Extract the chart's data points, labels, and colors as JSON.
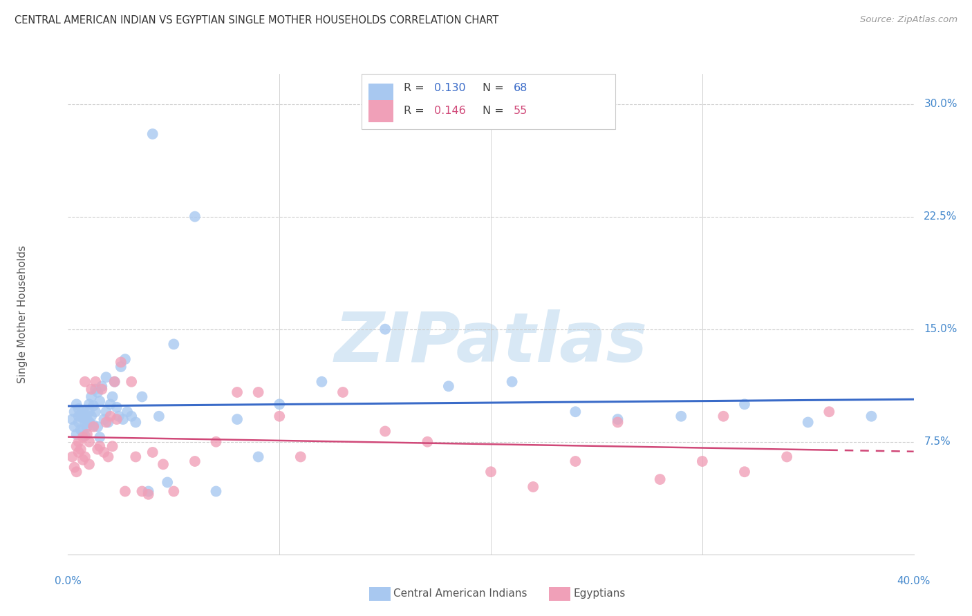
{
  "title": "CENTRAL AMERICAN INDIAN VS EGYPTIAN SINGLE MOTHER HOUSEHOLDS CORRELATION CHART",
  "source": "Source: ZipAtlas.com",
  "ylabel": "Single Mother Households",
  "ytick_labels": [
    "7.5%",
    "15.0%",
    "22.5%",
    "30.0%"
  ],
  "ytick_values": [
    0.075,
    0.15,
    0.225,
    0.3
  ],
  "xlim": [
    0.0,
    0.4
  ],
  "ylim": [
    0.0,
    0.32
  ],
  "blue_color": "#A8C8F0",
  "blue_line_color": "#3A6BC8",
  "pink_color": "#F0A0B8",
  "pink_line_color": "#D04878",
  "title_color": "#333333",
  "axis_label_color": "#4488CC",
  "source_color": "#999999",
  "watermark_color": "#D8E8F5",
  "grid_color": "#CCCCCC",
  "blue_scatter_x": [
    0.002,
    0.003,
    0.003,
    0.004,
    0.004,
    0.005,
    0.005,
    0.005,
    0.006,
    0.006,
    0.007,
    0.007,
    0.007,
    0.008,
    0.008,
    0.008,
    0.009,
    0.009,
    0.01,
    0.01,
    0.01,
    0.011,
    0.011,
    0.012,
    0.012,
    0.013,
    0.013,
    0.014,
    0.014,
    0.015,
    0.015,
    0.016,
    0.017,
    0.018,
    0.018,
    0.019,
    0.02,
    0.021,
    0.022,
    0.023,
    0.024,
    0.025,
    0.026,
    0.027,
    0.028,
    0.03,
    0.032,
    0.035,
    0.038,
    0.04,
    0.043,
    0.047,
    0.05,
    0.06,
    0.07,
    0.08,
    0.09,
    0.1,
    0.12,
    0.15,
    0.18,
    0.21,
    0.24,
    0.26,
    0.29,
    0.32,
    0.35,
    0.38
  ],
  "blue_scatter_y": [
    0.09,
    0.095,
    0.085,
    0.1,
    0.08,
    0.092,
    0.097,
    0.088,
    0.093,
    0.083,
    0.091,
    0.096,
    0.082,
    0.087,
    0.094,
    0.079,
    0.09,
    0.085,
    0.095,
    0.1,
    0.088,
    0.092,
    0.105,
    0.099,
    0.086,
    0.11,
    0.095,
    0.108,
    0.085,
    0.102,
    0.078,
    0.112,
    0.09,
    0.118,
    0.095,
    0.088,
    0.1,
    0.105,
    0.115,
    0.098,
    0.092,
    0.125,
    0.09,
    0.13,
    0.095,
    0.092,
    0.088,
    0.105,
    0.042,
    0.28,
    0.092,
    0.048,
    0.14,
    0.225,
    0.042,
    0.09,
    0.065,
    0.1,
    0.115,
    0.15,
    0.112,
    0.115,
    0.095,
    0.09,
    0.092,
    0.1,
    0.088,
    0.092
  ],
  "pink_scatter_x": [
    0.002,
    0.003,
    0.004,
    0.004,
    0.005,
    0.005,
    0.006,
    0.007,
    0.007,
    0.008,
    0.008,
    0.009,
    0.01,
    0.01,
    0.011,
    0.012,
    0.013,
    0.014,
    0.015,
    0.016,
    0.017,
    0.018,
    0.019,
    0.02,
    0.021,
    0.022,
    0.023,
    0.025,
    0.027,
    0.03,
    0.032,
    0.035,
    0.038,
    0.04,
    0.045,
    0.05,
    0.06,
    0.07,
    0.08,
    0.09,
    0.1,
    0.11,
    0.13,
    0.15,
    0.17,
    0.2,
    0.22,
    0.24,
    0.26,
    0.28,
    0.3,
    0.31,
    0.32,
    0.34,
    0.36
  ],
  "pink_scatter_y": [
    0.065,
    0.058,
    0.072,
    0.055,
    0.075,
    0.068,
    0.07,
    0.078,
    0.063,
    0.065,
    0.115,
    0.08,
    0.075,
    0.06,
    0.11,
    0.085,
    0.115,
    0.07,
    0.072,
    0.11,
    0.068,
    0.088,
    0.065,
    0.092,
    0.072,
    0.115,
    0.09,
    0.128,
    0.042,
    0.115,
    0.065,
    0.042,
    0.04,
    0.068,
    0.06,
    0.042,
    0.062,
    0.075,
    0.108,
    0.108,
    0.092,
    0.065,
    0.108,
    0.082,
    0.075,
    0.055,
    0.045,
    0.062,
    0.088,
    0.05,
    0.062,
    0.092,
    0.055,
    0.065,
    0.095
  ]
}
